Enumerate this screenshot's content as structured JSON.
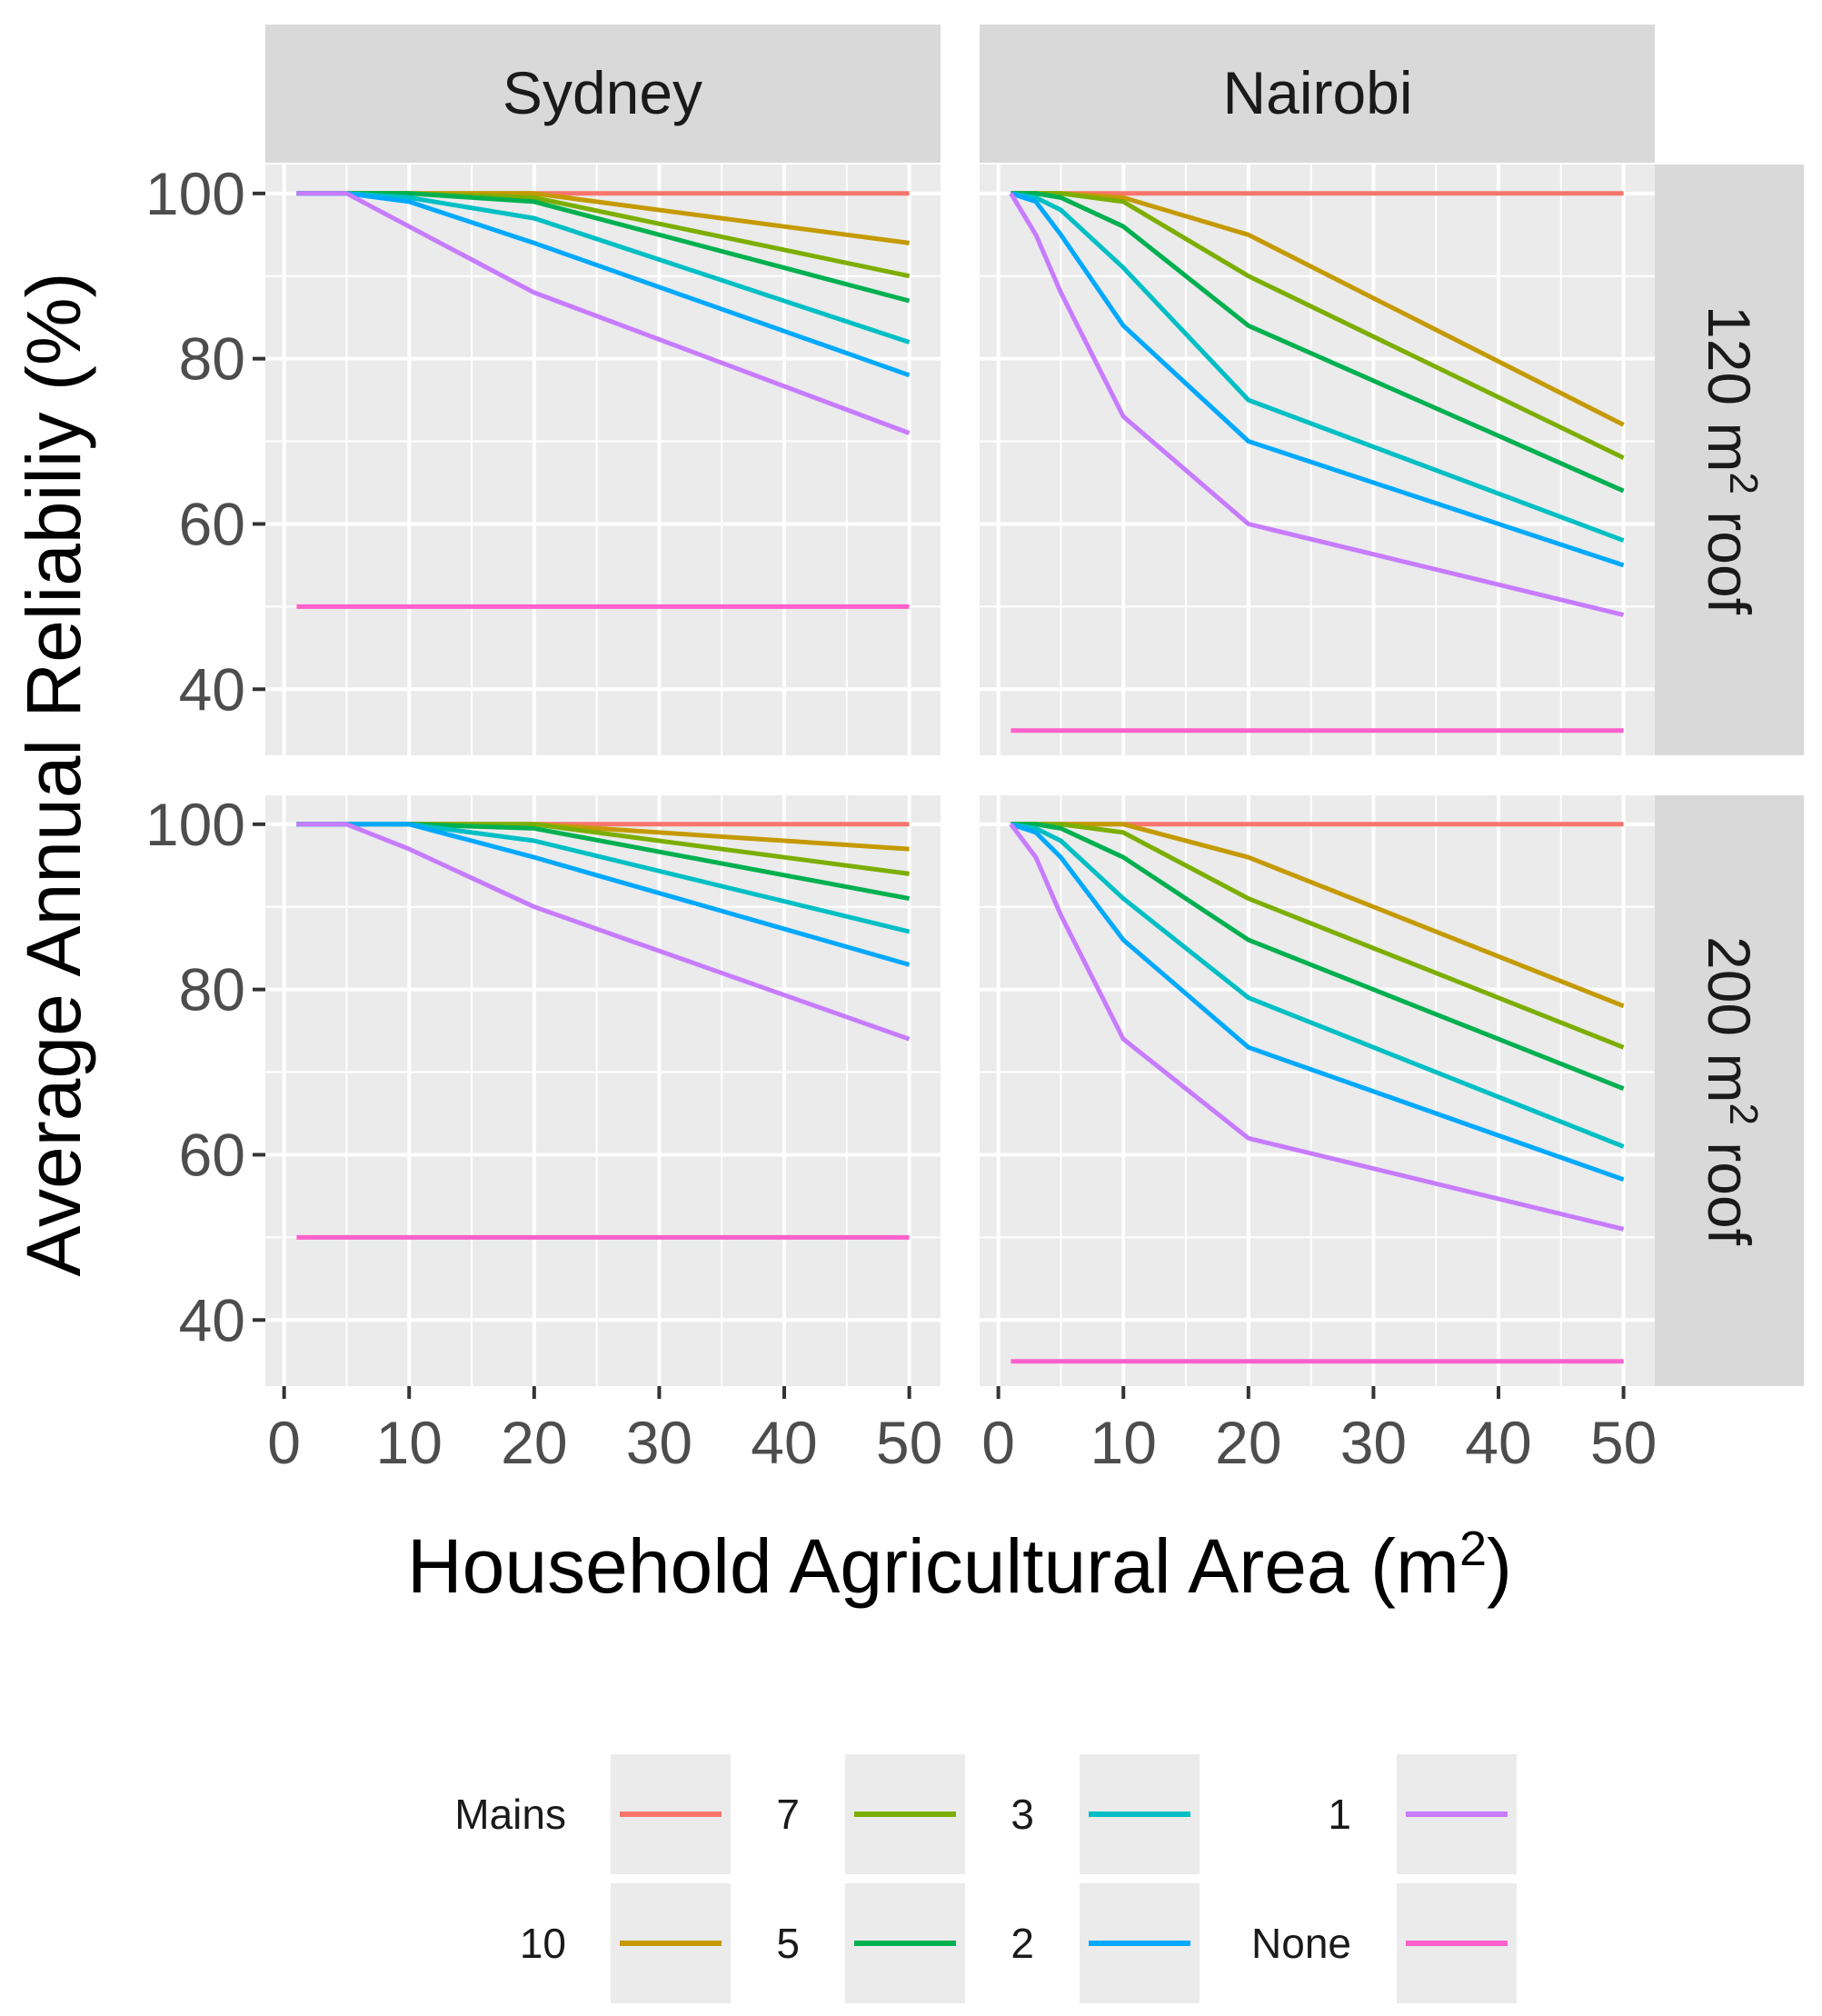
{
  "chart_data": {
    "type": "line",
    "xlabel": "Household Agricultural Area (m",
    "xlabel_sup": "2",
    "xlabel_end": ")",
    "ylabel": "Average Annual Reliabiliy (%)",
    "x_ticks": [
      0,
      10,
      20,
      30,
      40,
      50
    ],
    "y_ticks": [
      40,
      60,
      80,
      100
    ],
    "xlim": [
      -1.5,
      52.5
    ],
    "ylim": [
      32,
      103.5
    ],
    "column_facets": [
      "Sydney",
      "Nairobi"
    ],
    "row_facets": [
      {
        "pre": "120 m",
        "sup": "2",
        "post": " roof"
      },
      {
        "pre": "200 m",
        "sup": "2",
        "post": " roof"
      }
    ],
    "series_colors": {
      "Mains": "#F8766D",
      "10": "#C49A00",
      "7": "#7CAE00",
      "5": "#00B050",
      "3": "#00BFC4",
      "2": "#00A9FF",
      "1": "#C77CFF",
      "None": "#FF61CC"
    },
    "legend": [
      [
        "Mains",
        "10"
      ],
      [
        "7",
        "5"
      ],
      [
        "3",
        "2"
      ],
      [
        "1",
        "None"
      ]
    ],
    "panels": [
      {
        "col": "Sydney",
        "row": "120 m2 roof",
        "x": [
          1,
          5,
          10,
          20,
          50
        ],
        "series": [
          {
            "name": "Mains",
            "values": [
              100,
              100,
              100,
              100,
              100
            ]
          },
          {
            "name": "10",
            "values": [
              100,
              100,
              100,
              100,
              94
            ]
          },
          {
            "name": "7",
            "values": [
              100,
              100,
              100,
              99.5,
              90
            ]
          },
          {
            "name": "5",
            "values": [
              100,
              100,
              100,
              99,
              87
            ]
          },
          {
            "name": "3",
            "values": [
              100,
              100,
              99.5,
              97,
              82
            ]
          },
          {
            "name": "2",
            "values": [
              100,
              100,
              99,
              94,
              78
            ]
          },
          {
            "name": "1",
            "values": [
              100,
              100,
              96,
              88,
              71
            ]
          },
          {
            "name": "None",
            "values": [
              50,
              50,
              50,
              50,
              50
            ]
          }
        ]
      },
      {
        "col": "Nairobi",
        "row": "120 m2 roof",
        "x": [
          1,
          3,
          5,
          10,
          20,
          50
        ],
        "series": [
          {
            "name": "Mains",
            "values": [
              100,
              100,
              100,
              100,
              100,
              100
            ]
          },
          {
            "name": "10",
            "values": [
              100,
              100,
              100,
              99.5,
              95,
              72
            ]
          },
          {
            "name": "7",
            "values": [
              100,
              100,
              100,
              99,
              90,
              68
            ]
          },
          {
            "name": "5",
            "values": [
              100,
              100,
              99.5,
              96,
              84,
              64
            ]
          },
          {
            "name": "3",
            "values": [
              100,
              99.5,
              98,
              91,
              75,
              58
            ]
          },
          {
            "name": "2",
            "values": [
              100,
              99,
              95,
              84,
              70,
              55
            ]
          },
          {
            "name": "1",
            "values": [
              100,
              95,
              88,
              73,
              60,
              49
            ]
          },
          {
            "name": "None",
            "values": [
              35,
              35,
              35,
              35,
              35,
              35
            ]
          }
        ]
      },
      {
        "col": "Sydney",
        "row": "200 m2 roof",
        "x": [
          1,
          5,
          10,
          20,
          50
        ],
        "series": [
          {
            "name": "Mains",
            "values": [
              100,
              100,
              100,
              100,
              100
            ]
          },
          {
            "name": "10",
            "values": [
              100,
              100,
              100,
              100,
              97
            ]
          },
          {
            "name": "7",
            "values": [
              100,
              100,
              100,
              100,
              94
            ]
          },
          {
            "name": "5",
            "values": [
              100,
              100,
              100,
              99.5,
              91
            ]
          },
          {
            "name": "3",
            "values": [
              100,
              100,
              100,
              98,
              87
            ]
          },
          {
            "name": "2",
            "values": [
              100,
              100,
              100,
              96,
              83
            ]
          },
          {
            "name": "1",
            "values": [
              100,
              100,
              97,
              90,
              74
            ]
          },
          {
            "name": "None",
            "values": [
              50,
              50,
              50,
              50,
              50
            ]
          }
        ]
      },
      {
        "col": "Nairobi",
        "row": "200 m2 roof",
        "x": [
          1,
          3,
          5,
          10,
          20,
          50
        ],
        "series": [
          {
            "name": "Mains",
            "values": [
              100,
              100,
              100,
              100,
              100,
              100
            ]
          },
          {
            "name": "10",
            "values": [
              100,
              100,
              100,
              100,
              96,
              78
            ]
          },
          {
            "name": "7",
            "values": [
              100,
              100,
              100,
              99,
              91,
              73
            ]
          },
          {
            "name": "5",
            "values": [
              100,
              100,
              99.5,
              96,
              86,
              68
            ]
          },
          {
            "name": "3",
            "values": [
              100,
              99.5,
              98,
              91,
              79,
              61
            ]
          },
          {
            "name": "2",
            "values": [
              100,
              99,
              96,
              86,
              73,
              57
            ]
          },
          {
            "name": "1",
            "values": [
              100,
              96,
              89,
              74,
              62,
              51
            ]
          },
          {
            "name": "None",
            "values": [
              35,
              35,
              35,
              35,
              35,
              35
            ]
          }
        ]
      }
    ]
  }
}
